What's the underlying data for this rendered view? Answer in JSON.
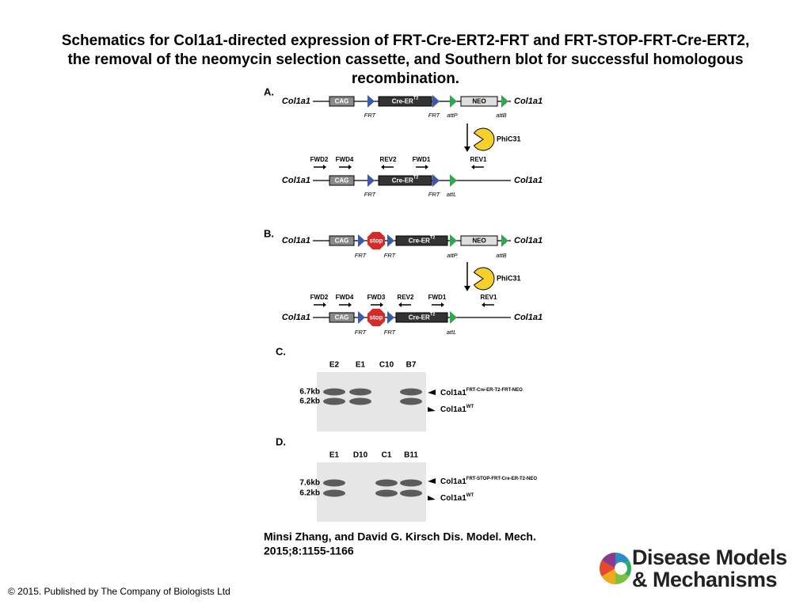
{
  "title_lines": [
    "Schematics for Col1a1-directed expression of FRT-Cre-ERT2-FRT and FRT-STOP-FRT-Cre-ERT2,",
    "the removal of the neomycin selection cassette, and Southern blot for successful homologous",
    "recombination."
  ],
  "panel_a": {
    "label": "A.",
    "row1": {
      "left": "Col1a1",
      "right": "Col1a1",
      "boxes": [
        "CAG",
        "Cre-ER",
        "NEO"
      ],
      "sup": "T2",
      "sites": [
        "FRT",
        "FRT",
        "attP",
        "attB"
      ]
    },
    "enzyme": "PhiC31",
    "primers": [
      "FWD2",
      "FWD4",
      "REV2",
      "FWD1",
      "REV1"
    ],
    "row2": {
      "left": "Col1a1",
      "right": "Col1a1",
      "boxes": [
        "CAG",
        "Cre-ER"
      ],
      "sup": "T2",
      "sites": [
        "FRT",
        "FRT",
        "attL"
      ]
    }
  },
  "panel_b": {
    "label": "B.",
    "row1": {
      "left": "Col1a1",
      "right": "Col1a1",
      "boxes": [
        "CAG",
        "Cre-ER",
        "NEO"
      ],
      "sup": "T2",
      "stop": "stop",
      "sites": [
        "FRT",
        "FRT",
        "attP",
        "attB"
      ]
    },
    "enzyme": "PhiC31",
    "primers": [
      "FWD2",
      "FWD4",
      "FWD3",
      "REV2",
      "FWD1",
      "REV1"
    ],
    "row2": {
      "left": "Col1a1",
      "right": "Col1a1",
      "boxes": [
        "CAG",
        "Cre-ER"
      ],
      "sup": "T2",
      "stop": "stop",
      "sites": [
        "FRT",
        "FRT",
        "attL"
      ]
    }
  },
  "panel_c": {
    "label": "C.",
    "lanes": [
      "E2",
      "E1",
      "C10",
      "B7"
    ],
    "sizes": [
      "6.7kb",
      "6.2kb"
    ],
    "bands": [
      {
        "gene": "Col1a1",
        "sup": "FRT-Cre-ER-T2-FRT-NEO"
      },
      {
        "gene": "Col1a1",
        "sup": "WT"
      }
    ]
  },
  "panel_d": {
    "label": "D.",
    "lanes": [
      "E1",
      "D10",
      "C1",
      "B11"
    ],
    "sizes": [
      "7.6kb",
      "6.2kb"
    ],
    "bands": [
      {
        "gene": "Col1a1",
        "sup": "FRT-STOP-FRT-Cre-ER-T2-NEO"
      },
      {
        "gene": "Col1a1",
        "sup": "WT"
      }
    ]
  },
  "citation": [
    "Minsi Zhang, and David G. Kirsch Dis. Model. Mech.",
    "2015;8:1155-1166"
  ],
  "footer": "© 2015. Published by The Company of Biologists Ltd",
  "logo": [
    "Disease Models",
    "& Mechanisms"
  ]
}
